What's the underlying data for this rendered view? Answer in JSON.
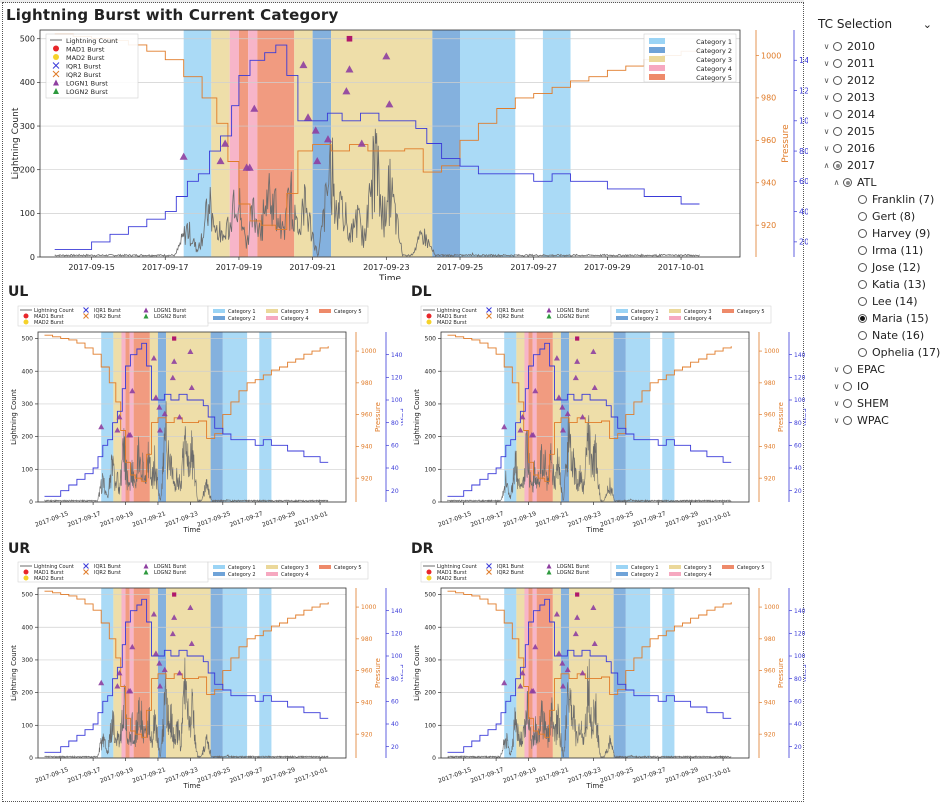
{
  "main_title": "Lightning Burst with Current Category",
  "quadrants": [
    "UL",
    "DL",
    "UR",
    "DR"
  ],
  "slicer": {
    "title": "TC Selection",
    "years": [
      {
        "label": "2010",
        "state": "none"
      },
      {
        "label": "2011",
        "state": "none"
      },
      {
        "label": "2012",
        "state": "none"
      },
      {
        "label": "2013",
        "state": "none"
      },
      {
        "label": "2014",
        "state": "none"
      },
      {
        "label": "2015",
        "state": "none"
      },
      {
        "label": "2016",
        "state": "none"
      },
      {
        "label": "2017",
        "state": "partial",
        "expanded": true
      }
    ],
    "basins": [
      {
        "label": "ATL",
        "state": "partial",
        "expanded": true
      },
      {
        "label": "EPAC",
        "state": "none"
      },
      {
        "label": "IO",
        "state": "none"
      },
      {
        "label": "SHEM",
        "state": "none"
      },
      {
        "label": "WPAC",
        "state": "none"
      }
    ],
    "storms": [
      {
        "label": "Franklin (7)",
        "selected": false
      },
      {
        "label": "Gert (8)",
        "selected": false
      },
      {
        "label": "Harvey (9)",
        "selected": false
      },
      {
        "label": "Irma (11)",
        "selected": false
      },
      {
        "label": "Jose (12)",
        "selected": false
      },
      {
        "label": "Katia (13)",
        "selected": false
      },
      {
        "label": "Lee (14)",
        "selected": false
      },
      {
        "label": "Maria (15)",
        "selected": true
      },
      {
        "label": "Nate (16)",
        "selected": false
      },
      {
        "label": "Ophelia (17)",
        "selected": false
      }
    ]
  },
  "chart_data": [
    {
      "name": "",
      "type": "line",
      "xlabel": "Time",
      "ylabel": "Lightning Count",
      "y2label": "Pressure",
      "y3label": "Wind",
      "xticks": [
        "2017-09-15",
        "2017-09-17",
        "2017-09-19",
        "2017-09-21",
        "2017-09-23",
        "2017-09-25",
        "2017-09-27",
        "2017-09-29",
        "2017-10-01"
      ],
      "ylim": [
        0,
        520
      ],
      "yticks": [
        0,
        100,
        200,
        300,
        400,
        500
      ],
      "y2lim": [
        905,
        1012
      ],
      "y2ticks": [
        920,
        940,
        960,
        980,
        1000
      ],
      "y3lim": [
        10,
        160
      ],
      "y3ticks": [
        20,
        40,
        60,
        80,
        100,
        120,
        140
      ],
      "grid": true,
      "legend_lines": [
        "Lightning Count",
        "MAD1 Burst",
        "MAD2 Burst",
        "IQR1 Burst",
        "IQR2 Burst",
        "LOGN1 Burst",
        "LOGN2 Burst"
      ],
      "legend_categories": [
        "Category 1",
        "Category 2",
        "Category 3",
        "Category 4",
        "Category 5"
      ],
      "category_colors": {
        "1": "#9bd4f5",
        "2": "#6fa3d8",
        "3": "#ebd89a",
        "4": "#f6a8c0",
        "5": "#ee8a6a"
      },
      "category_spans": [
        {
          "start": "2017-09-17T12",
          "end": "2017-09-18T06",
          "category": 1
        },
        {
          "start": "2017-09-18T06",
          "end": "2017-09-18T18",
          "category": 3
        },
        {
          "start": "2017-09-18T18",
          "end": "2017-09-19T00",
          "category": 4
        },
        {
          "start": "2017-09-19T00",
          "end": "2017-09-19T06",
          "category": 5
        },
        {
          "start": "2017-09-19T06",
          "end": "2017-09-19T12",
          "category": 4
        },
        {
          "start": "2017-09-19T12",
          "end": "2017-09-20T12",
          "category": 5
        },
        {
          "start": "2017-09-20T12",
          "end": "2017-09-21T00",
          "category": 3
        },
        {
          "start": "2017-09-21T00",
          "end": "2017-09-21T12",
          "category": 2
        },
        {
          "start": "2017-09-21T12",
          "end": "2017-09-24T06",
          "category": 3
        },
        {
          "start": "2017-09-24T06",
          "end": "2017-09-25T00",
          "category": 2
        },
        {
          "start": "2017-09-25T00",
          "end": "2017-09-26T12",
          "category": 1
        },
        {
          "start": "2017-09-27T06",
          "end": "2017-09-28T00",
          "category": 1
        }
      ],
      "wind": [
        [
          14.0,
          15
        ],
        [
          14.5,
          15
        ],
        [
          15.0,
          20
        ],
        [
          15.5,
          25
        ],
        [
          16.0,
          30
        ],
        [
          16.5,
          35
        ],
        [
          17.0,
          40
        ],
        [
          17.3,
          50
        ],
        [
          17.6,
          60
        ],
        [
          17.9,
          65
        ],
        [
          18.2,
          80
        ],
        [
          18.5,
          90
        ],
        [
          18.8,
          110
        ],
        [
          19.0,
          130
        ],
        [
          19.3,
          140
        ],
        [
          19.7,
          145
        ],
        [
          20.0,
          150
        ],
        [
          20.3,
          130
        ],
        [
          20.6,
          100
        ],
        [
          21.0,
          100
        ],
        [
          21.4,
          105
        ],
        [
          21.8,
          100
        ],
        [
          22.3,
          105
        ],
        [
          22.8,
          100
        ],
        [
          23.3,
          100
        ],
        [
          23.8,
          95
        ],
        [
          24.1,
          85
        ],
        [
          24.5,
          75
        ],
        [
          25.0,
          70
        ],
        [
          25.5,
          65
        ],
        [
          26.0,
          65
        ],
        [
          26.5,
          65
        ],
        [
          27.0,
          60
        ],
        [
          27.5,
          65
        ],
        [
          28.0,
          60
        ],
        [
          28.5,
          60
        ],
        [
          29.0,
          55
        ],
        [
          29.5,
          55
        ],
        [
          30.0,
          50
        ],
        [
          30.5,
          50
        ],
        [
          31.0,
          45
        ],
        [
          31.5,
          45
        ]
      ],
      "pressure": [
        [
          14.0,
          1010
        ],
        [
          14.5,
          1009
        ],
        [
          15.0,
          1008
        ],
        [
          15.5,
          1007
        ],
        [
          16.0,
          1005
        ],
        [
          16.5,
          1002
        ],
        [
          17.0,
          998
        ],
        [
          17.5,
          990
        ],
        [
          18.0,
          980
        ],
        [
          18.4,
          968
        ],
        [
          18.7,
          950
        ],
        [
          19.0,
          930
        ],
        [
          19.3,
          922
        ],
        [
          19.6,
          920
        ],
        [
          20.0,
          918
        ],
        [
          20.3,
          935
        ],
        [
          20.6,
          955
        ],
        [
          21.0,
          958
        ],
        [
          21.5,
          955
        ],
        [
          22.0,
          958
        ],
        [
          22.5,
          955
        ],
        [
          23.0,
          955
        ],
        [
          23.5,
          956
        ],
        [
          24.0,
          945
        ],
        [
          24.5,
          948
        ],
        [
          25.0,
          960
        ],
        [
          25.5,
          968
        ],
        [
          26.0,
          975
        ],
        [
          26.5,
          980
        ],
        [
          27.0,
          982
        ],
        [
          27.5,
          985
        ],
        [
          28.0,
          988
        ],
        [
          28.5,
          990
        ],
        [
          29.0,
          993
        ],
        [
          29.5,
          995
        ],
        [
          30.0,
          998
        ],
        [
          30.5,
          1000
        ],
        [
          31.0,
          1002
        ],
        [
          31.5,
          1003
        ]
      ],
      "lightning_peaks": [
        [
          17.6,
          100
        ],
        [
          18.2,
          180
        ],
        [
          18.5,
          100
        ],
        [
          18.9,
          260
        ],
        [
          19.4,
          150
        ],
        [
          19.8,
          220
        ],
        [
          20.0,
          190
        ],
        [
          20.4,
          210
        ],
        [
          20.8,
          180
        ],
        [
          21.5,
          320
        ],
        [
          21.8,
          180
        ],
        [
          22.2,
          140
        ],
        [
          22.7,
          350
        ],
        [
          23.1,
          240
        ],
        [
          24.0,
          80
        ],
        [
          25.3,
          10
        ],
        [
          30.7,
          5
        ]
      ],
      "bursts": [
        {
          "x": "2017-09-17T12",
          "y": 230,
          "type": "LOGN1"
        },
        {
          "x": "2017-09-18T12",
          "y": 220,
          "type": "LOGN1"
        },
        {
          "x": "2017-09-18T15",
          "y": 260,
          "type": "LOGN1"
        },
        {
          "x": "2017-09-19T05",
          "y": 205,
          "type": "LOGN1"
        },
        {
          "x": "2017-09-19T07",
          "y": 205,
          "type": "LOGN1"
        },
        {
          "x": "2017-09-19T10",
          "y": 340,
          "type": "LOGN1"
        },
        {
          "x": "2017-09-20T18",
          "y": 440,
          "type": "LOGN1"
        },
        {
          "x": "2017-09-20T21",
          "y": 320,
          "type": "LOGN1"
        },
        {
          "x": "2017-09-21T02",
          "y": 290,
          "type": "LOGN1"
        },
        {
          "x": "2017-09-21T03",
          "y": 220,
          "type": "LOGN1"
        },
        {
          "x": "2017-09-21T10",
          "y": 270,
          "type": "LOGN1"
        },
        {
          "x": "2017-09-21T22",
          "y": 380,
          "type": "LOGN1"
        },
        {
          "x": "2017-09-22T00",
          "y": 500,
          "type": "MAD1"
        },
        {
          "x": "2017-09-22T00",
          "y": 430,
          "type": "LOGN1"
        },
        {
          "x": "2017-09-22T08",
          "y": 260,
          "type": "LOGN1"
        },
        {
          "x": "2017-09-23T00",
          "y": 460,
          "type": "LOGN1"
        },
        {
          "x": "2017-09-23T02",
          "y": 350,
          "type": "LOGN1"
        }
      ]
    }
  ]
}
